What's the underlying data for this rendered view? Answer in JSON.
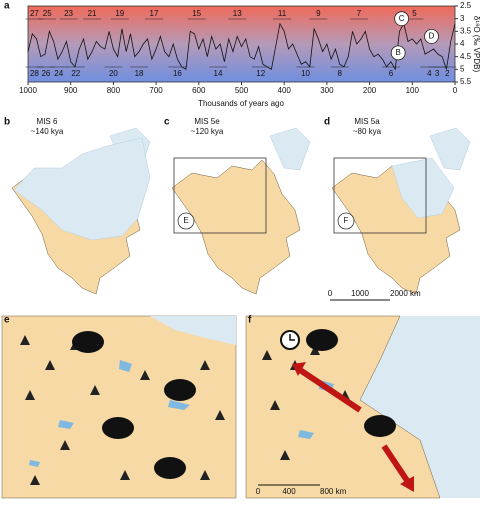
{
  "chart_data": {
    "type": "line",
    "panel": "a",
    "x_label": "Thousands of years ago",
    "y_label": "δ¹⁸O (‰ VPDB)",
    "x": [
      1000,
      990,
      980,
      970,
      960,
      950,
      940,
      930,
      920,
      910,
      900,
      890,
      880,
      870,
      860,
      850,
      840,
      830,
      820,
      810,
      800,
      790,
      780,
      770,
      760,
      750,
      740,
      730,
      720,
      710,
      700,
      690,
      680,
      670,
      660,
      650,
      640,
      630,
      620,
      610,
      600,
      590,
      580,
      570,
      560,
      550,
      540,
      530,
      520,
      510,
      500,
      490,
      480,
      470,
      460,
      450,
      440,
      430,
      420,
      410,
      400,
      390,
      380,
      370,
      360,
      350,
      340,
      330,
      320,
      310,
      300,
      290,
      280,
      270,
      260,
      250,
      240,
      230,
      220,
      210,
      200,
      190,
      180,
      170,
      160,
      150,
      140,
      130,
      120,
      110,
      100,
      90,
      80,
      70,
      60,
      50,
      40,
      30,
      20,
      10,
      0
    ],
    "values": [
      4.3,
      3.6,
      3.8,
      4.5,
      4.4,
      3.5,
      3.9,
      4.6,
      4.3,
      3.9,
      4.7,
      4.9,
      4.2,
      3.8,
      4.6,
      4.3,
      3.9,
      4.1,
      4.2,
      3.5,
      4.2,
      4.5,
      3.4,
      4.3,
      3.6,
      4.5,
      4.3,
      4.0,
      3.8,
      4.6,
      4.2,
      3.7,
      4.3,
      4.5,
      4.0,
      4.6,
      4.9,
      5.0,
      3.5,
      3.6,
      4.2,
      3.8,
      4.5,
      3.7,
      4.2,
      4.0,
      4.7,
      3.8,
      4.3,
      3.7,
      4.1,
      3.8,
      4.5,
      4.6,
      4.1,
      4.8,
      4.9,
      5.0,
      4.1,
      3.2,
      3.5,
      4.2,
      4.0,
      4.4,
      4.8,
      4.7,
      4.9,
      3.4,
      3.8,
      4.3,
      4.0,
      4.6,
      4.2,
      4.8,
      4.9,
      4.5,
      3.5,
      4.0,
      3.8,
      3.5,
      4.2,
      4.5,
      4.4,
      4.6,
      4.9,
      4.7,
      5.0,
      3.5,
      3.2,
      3.9,
      3.8,
      4.0,
      3.8,
      4.4,
      4.3,
      4.2,
      4.4,
      4.5,
      5.0,
      3.9,
      3.2
    ],
    "color": "#111111",
    "xlim": [
      1000,
      0
    ],
    "xticks": [
      1000,
      900,
      800,
      700,
      600,
      500,
      400,
      300,
      200,
      100,
      0
    ],
    "ylim": [
      5.5,
      2.5
    ],
    "yticks": [
      2.5,
      3,
      3.5,
      4,
      4.5,
      5,
      5.5
    ],
    "odd_stages": [
      {
        "text": "27",
        "x": 985
      },
      {
        "text": "25",
        "x": 955
      },
      {
        "text": "23",
        "x": 905
      },
      {
        "text": "21",
        "x": 850
      },
      {
        "text": "19",
        "x": 785
      },
      {
        "text": "17",
        "x": 705
      },
      {
        "text": "15",
        "x": 605
      },
      {
        "text": "13",
        "x": 510
      },
      {
        "text": "11",
        "x": 405
      },
      {
        "text": "9",
        "x": 320
      },
      {
        "text": "7",
        "x": 225
      },
      {
        "text": "5",
        "x": 95
      }
    ],
    "even_stages": [
      {
        "text": "28",
        "x": 985
      },
      {
        "text": "26",
        "x": 958
      },
      {
        "text": "24",
        "x": 928
      },
      {
        "text": "22",
        "x": 888
      },
      {
        "text": "20",
        "x": 800
      },
      {
        "text": "18",
        "x": 740
      },
      {
        "text": "16",
        "x": 650
      },
      {
        "text": "14",
        "x": 555
      },
      {
        "text": "12",
        "x": 455
      },
      {
        "text": "10",
        "x": 350
      },
      {
        "text": "8",
        "x": 270
      },
      {
        "text": "6",
        "x": 150
      },
      {
        "text": "4",
        "x": 60
      },
      {
        "text": "3",
        "x": 42
      },
      {
        "text": "2",
        "x": 18
      }
    ],
    "markers": [
      {
        "text": "C",
        "x": 125,
        "y": 3.0
      },
      {
        "text": "B",
        "x": 133,
        "y": 4.35
      },
      {
        "text": "D",
        "x": 55,
        "y": 3.7
      }
    ]
  },
  "maps": [
    {
      "letter": "b",
      "title": "MIS 6",
      "subtitle": "~140 kya"
    },
    {
      "letter": "c",
      "title": "MIS 5e",
      "subtitle": "~120 kya",
      "inset": "E"
    },
    {
      "letter": "d",
      "title": "MIS 5a",
      "subtitle": "~80 kya",
      "inset": "F"
    }
  ],
  "scale_bar": [
    "0",
    "1000",
    "2000 km"
  ],
  "detail": [
    {
      "letter": "e"
    },
    {
      "letter": "f",
      "scale": [
        "0",
        "400",
        "800 km"
      ]
    }
  ]
}
